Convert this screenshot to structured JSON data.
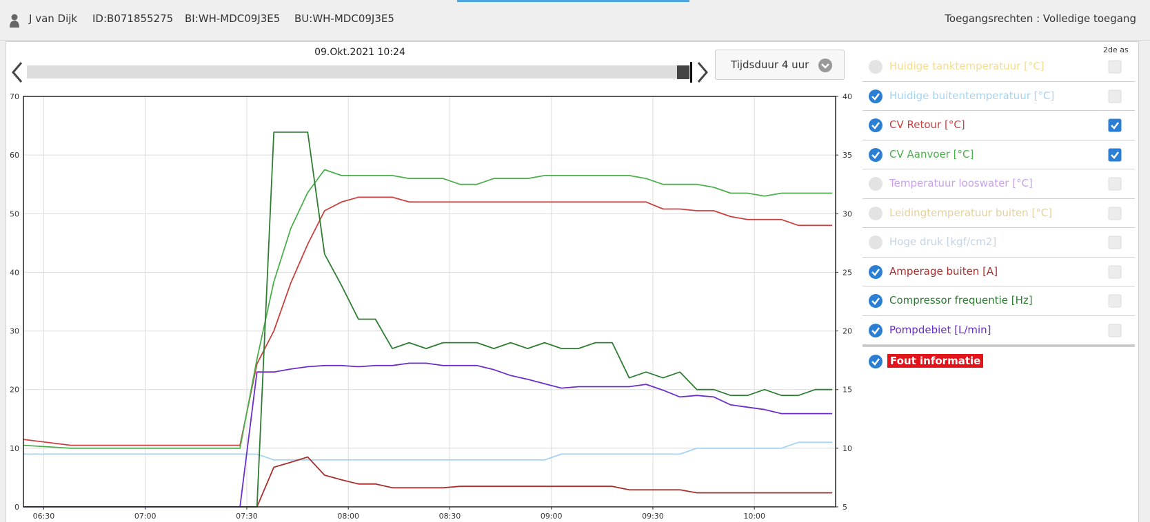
{
  "header": {
    "user": "J van Dijk",
    "id": "ID:B071855275",
    "bi": "BI:WH-MDC09J3E5",
    "bu": "BU:WH-MDC09J3E5",
    "access": "Toegangsrechten : Volledige toegang"
  },
  "timeline": {
    "date": "09.Okt.2021 10:24",
    "duration": "Tijdsduur 4 uur"
  },
  "second_axis_label": "2de as",
  "fault": {
    "label": "Fout informatie",
    "visible": true
  },
  "chart_data": {
    "type": "line",
    "x": [
      384,
      398,
      448,
      453,
      458,
      463,
      468,
      473,
      478,
      483,
      488,
      493,
      498,
      503,
      508,
      513,
      518,
      523,
      528,
      533,
      538,
      543,
      548,
      553,
      558,
      563,
      568,
      573,
      578,
      583,
      588,
      593,
      598,
      603,
      608,
      613,
      618,
      623
    ],
    "xlim": [
      384,
      624
    ],
    "xticks": [
      {
        "value": 390,
        "label": "06:30"
      },
      {
        "value": 420,
        "label": "07:00"
      },
      {
        "value": 450,
        "label": "07:30"
      },
      {
        "value": 480,
        "label": "08:00"
      },
      {
        "value": 510,
        "label": "08:30"
      },
      {
        "value": 540,
        "label": "09:00"
      },
      {
        "value": 570,
        "label": "09:30"
      },
      {
        "value": 600,
        "label": "10:00"
      }
    ],
    "ylim": [
      0,
      70
    ],
    "yticks": [
      0,
      10,
      20,
      30,
      40,
      50,
      60,
      70
    ],
    "y2lim": [
      5,
      40
    ],
    "y2ticks": [
      5,
      10,
      15,
      20,
      25,
      30,
      35,
      40
    ],
    "grid": true,
    "series": [
      {
        "name": "Huidige tanktemperatuur [°C]",
        "color": "#f6dc8f",
        "visible": false
      },
      {
        "name": "Huidige buitentemperatuur [°C]",
        "color": "#a6d3f2",
        "visible": true,
        "values": [
          9,
          9,
          9,
          9,
          8,
          8,
          8,
          8,
          8,
          8,
          8,
          8,
          8,
          8,
          8,
          8,
          8,
          8,
          8,
          8,
          8,
          9,
          9,
          9,
          9,
          9,
          9,
          9,
          9,
          10,
          10,
          10,
          10,
          10,
          10,
          11,
          11,
          11
        ]
      },
      {
        "name": "CV Retour [°C]",
        "color": "#c9403f",
        "visible": true,
        "axis": "y2",
        "values": [
          10.75,
          10.25,
          10.25,
          17.2,
          20,
          24.1,
          27.4,
          30.25,
          31,
          31.4,
          31.4,
          31.4,
          31,
          31,
          31,
          31,
          31,
          31,
          31,
          31,
          31,
          31,
          31,
          31,
          31,
          31,
          31,
          30.4,
          30.4,
          30.25,
          30.25,
          29.75,
          29.5,
          29.5,
          29.5,
          29,
          29,
          29
        ]
      },
      {
        "name": "CV Aanvoer [°C]",
        "color": "#4cae4c",
        "visible": true,
        "axis": "y2",
        "values": [
          10.25,
          10,
          10,
          17.6,
          24.2,
          28.75,
          31.8,
          33.75,
          33.25,
          33.25,
          33.25,
          33.25,
          33,
          33,
          33,
          32.5,
          32.5,
          33,
          33,
          33,
          33.25,
          33.25,
          33.25,
          33.25,
          33.25,
          33.25,
          33,
          32.5,
          32.5,
          32.5,
          32.25,
          31.75,
          31.75,
          31.5,
          31.75,
          31.75,
          31.75,
          31.75
        ]
      },
      {
        "name": "Temperatuur looswater [°C]",
        "color": "#c8a2ef",
        "visible": false
      },
      {
        "name": "Leidingtemperatuur buiten [°C]",
        "color": "#e6d09c",
        "visible": false
      },
      {
        "name": "Hoge druk [kgf/cm2]",
        "color": "#c3d4e6",
        "visible": false
      },
      {
        "name": "Amperage buiten [A]",
        "color": "#a5302f",
        "visible": true,
        "values": [
          0,
          0,
          0,
          0,
          6.75,
          7.6,
          8.5,
          5.4,
          4.6,
          3.9,
          3.9,
          3.25,
          3.25,
          3.25,
          3.25,
          3.5,
          3.5,
          3.5,
          3.5,
          3.5,
          3.5,
          3.5,
          3.5,
          3.5,
          3.5,
          2.9,
          2.9,
          2.9,
          2.9,
          2.4,
          2.4,
          2.4,
          2.4,
          2.4,
          2.4,
          2.4,
          2.4,
          2.4
        ]
      },
      {
        "name": "Compressor frequentie [Hz]",
        "color": "#2e7d32",
        "visible": true,
        "values": [
          0,
          0,
          0,
          0,
          63.9,
          63.9,
          63.9,
          43.1,
          37.75,
          32,
          32,
          27,
          28,
          27,
          28,
          28,
          28,
          27,
          28,
          27,
          28,
          27,
          27,
          28,
          28,
          22,
          23,
          22,
          23,
          20,
          20,
          19,
          19,
          20,
          19,
          19,
          20,
          20
        ]
      },
      {
        "name": "Pompdebiet [L/min]",
        "color": "#6a2ecb",
        "visible": true,
        "values": [
          0,
          0,
          0,
          23,
          23,
          23.5,
          23.9,
          24.1,
          24.1,
          23.9,
          24.1,
          24.1,
          24.5,
          24.5,
          24.1,
          24.1,
          24.1,
          23.4,
          22.4,
          21.75,
          21,
          20.25,
          20.5,
          20.5,
          20.5,
          20.5,
          20.9,
          19.9,
          18.75,
          19,
          18.75,
          17.4,
          17,
          16.6,
          15.9,
          15.9,
          15.9,
          15.9
        ]
      }
    ]
  }
}
